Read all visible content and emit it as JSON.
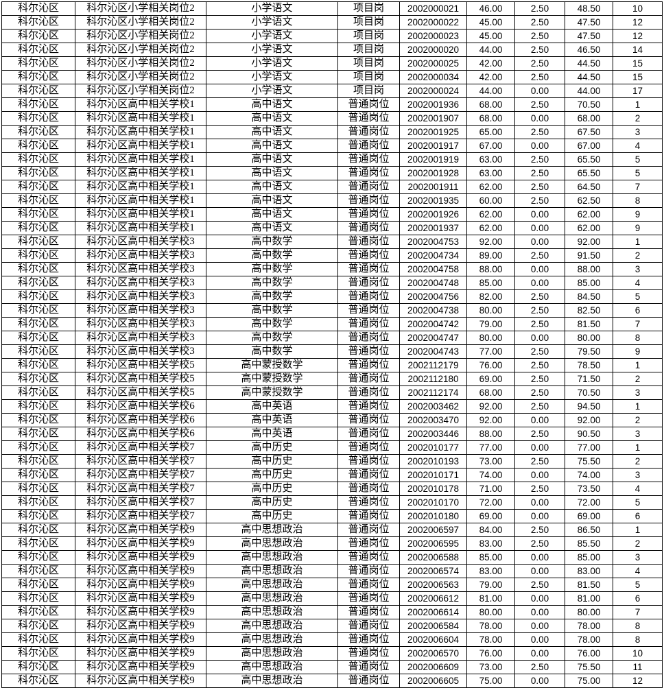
{
  "table": {
    "column_keys": [
      "district",
      "position-group",
      "subject",
      "post-type",
      "exam-id",
      "written-score",
      "extra-points",
      "total-score",
      "rank"
    ],
    "rows": [
      [
        "科尔沁区",
        "科尔沁区小学相关岗位2",
        "小学语文",
        "项目岗",
        "2002000021",
        "46.00",
        "2.50",
        "48.50",
        "10"
      ],
      [
        "科尔沁区",
        "科尔沁区小学相关岗位2",
        "小学语文",
        "项目岗",
        "2002000022",
        "45.00",
        "2.50",
        "47.50",
        "12"
      ],
      [
        "科尔沁区",
        "科尔沁区小学相关岗位2",
        "小学语文",
        "项目岗",
        "2002000023",
        "45.00",
        "2.50",
        "47.50",
        "12"
      ],
      [
        "科尔沁区",
        "科尔沁区小学相关岗位2",
        "小学语文",
        "项目岗",
        "2002000020",
        "44.00",
        "2.50",
        "46.50",
        "14"
      ],
      [
        "科尔沁区",
        "科尔沁区小学相关岗位2",
        "小学语文",
        "项目岗",
        "2002000025",
        "42.00",
        "2.50",
        "44.50",
        "15"
      ],
      [
        "科尔沁区",
        "科尔沁区小学相关岗位2",
        "小学语文",
        "项目岗",
        "2002000034",
        "42.00",
        "2.50",
        "44.50",
        "15"
      ],
      [
        "科尔沁区",
        "科尔沁区小学相关岗位2",
        "小学语文",
        "项目岗",
        "2002000024",
        "44.00",
        "0.00",
        "44.00",
        "17"
      ],
      [
        "科尔沁区",
        "科尔沁区高中相关学校1",
        "高中语文",
        "普通岗位",
        "2002001936",
        "68.00",
        "2.50",
        "70.50",
        "1"
      ],
      [
        "科尔沁区",
        "科尔沁区高中相关学校1",
        "高中语文",
        "普通岗位",
        "2002001907",
        "68.00",
        "0.00",
        "68.00",
        "2"
      ],
      [
        "科尔沁区",
        "科尔沁区高中相关学校1",
        "高中语文",
        "普通岗位",
        "2002001925",
        "65.00",
        "2.50",
        "67.50",
        "3"
      ],
      [
        "科尔沁区",
        "科尔沁区高中相关学校1",
        "高中语文",
        "普通岗位",
        "2002001917",
        "67.00",
        "0.00",
        "67.00",
        "4"
      ],
      [
        "科尔沁区",
        "科尔沁区高中相关学校1",
        "高中语文",
        "普通岗位",
        "2002001919",
        "63.00",
        "2.50",
        "65.50",
        "5"
      ],
      [
        "科尔沁区",
        "科尔沁区高中相关学校1",
        "高中语文",
        "普通岗位",
        "2002001928",
        "63.00",
        "2.50",
        "65.50",
        "5"
      ],
      [
        "科尔沁区",
        "科尔沁区高中相关学校1",
        "高中语文",
        "普通岗位",
        "2002001911",
        "62.00",
        "2.50",
        "64.50",
        "7"
      ],
      [
        "科尔沁区",
        "科尔沁区高中相关学校1",
        "高中语文",
        "普通岗位",
        "2002001935",
        "60.00",
        "2.50",
        "62.50",
        "8"
      ],
      [
        "科尔沁区",
        "科尔沁区高中相关学校1",
        "高中语文",
        "普通岗位",
        "2002001926",
        "62.00",
        "0.00",
        "62.00",
        "9"
      ],
      [
        "科尔沁区",
        "科尔沁区高中相关学校1",
        "高中语文",
        "普通岗位",
        "2002001937",
        "62.00",
        "0.00",
        "62.00",
        "9"
      ],
      [
        "科尔沁区",
        "科尔沁区高中相关学校3",
        "高中数学",
        "普通岗位",
        "2002004753",
        "92.00",
        "0.00",
        "92.00",
        "1"
      ],
      [
        "科尔沁区",
        "科尔沁区高中相关学校3",
        "高中数学",
        "普通岗位",
        "2002004734",
        "89.00",
        "2.50",
        "91.50",
        "2"
      ],
      [
        "科尔沁区",
        "科尔沁区高中相关学校3",
        "高中数学",
        "普通岗位",
        "2002004758",
        "88.00",
        "0.00",
        "88.00",
        "3"
      ],
      [
        "科尔沁区",
        "科尔沁区高中相关学校3",
        "高中数学",
        "普通岗位",
        "2002004748",
        "85.00",
        "0.00",
        "85.00",
        "4"
      ],
      [
        "科尔沁区",
        "科尔沁区高中相关学校3",
        "高中数学",
        "普通岗位",
        "2002004756",
        "82.00",
        "2.50",
        "84.50",
        "5"
      ],
      [
        "科尔沁区",
        "科尔沁区高中相关学校3",
        "高中数学",
        "普通岗位",
        "2002004738",
        "80.00",
        "2.50",
        "82.50",
        "6"
      ],
      [
        "科尔沁区",
        "科尔沁区高中相关学校3",
        "高中数学",
        "普通岗位",
        "2002004742",
        "79.00",
        "2.50",
        "81.50",
        "7"
      ],
      [
        "科尔沁区",
        "科尔沁区高中相关学校3",
        "高中数学",
        "普通岗位",
        "2002004747",
        "80.00",
        "0.00",
        "80.00",
        "8"
      ],
      [
        "科尔沁区",
        "科尔沁区高中相关学校3",
        "高中数学",
        "普通岗位",
        "2002004743",
        "77.00",
        "2.50",
        "79.50",
        "9"
      ],
      [
        "科尔沁区",
        "科尔沁区高中相关学校5",
        "高中蒙授数学",
        "普通岗位",
        "2002112179",
        "76.00",
        "2.50",
        "78.50",
        "1"
      ],
      [
        "科尔沁区",
        "科尔沁区高中相关学校5",
        "高中蒙授数学",
        "普通岗位",
        "2002112180",
        "69.00",
        "2.50",
        "71.50",
        "2"
      ],
      [
        "科尔沁区",
        "科尔沁区高中相关学校5",
        "高中蒙授数学",
        "普通岗位",
        "2002112174",
        "68.00",
        "2.50",
        "70.50",
        "3"
      ],
      [
        "科尔沁区",
        "科尔沁区高中相关学校6",
        "高中英语",
        "普通岗位",
        "2002003462",
        "92.00",
        "2.50",
        "94.50",
        "1"
      ],
      [
        "科尔沁区",
        "科尔沁区高中相关学校6",
        "高中英语",
        "普通岗位",
        "2002003470",
        "92.00",
        "0.00",
        "92.00",
        "2"
      ],
      [
        "科尔沁区",
        "科尔沁区高中相关学校6",
        "高中英语",
        "普通岗位",
        "2002003446",
        "88.00",
        "2.50",
        "90.50",
        "3"
      ],
      [
        "科尔沁区",
        "科尔沁区高中相关学校7",
        "高中历史",
        "普通岗位",
        "2002010177",
        "77.00",
        "0.00",
        "77.00",
        "1"
      ],
      [
        "科尔沁区",
        "科尔沁区高中相关学校7",
        "高中历史",
        "普通岗位",
        "2002010193",
        "73.00",
        "2.50",
        "75.50",
        "2"
      ],
      [
        "科尔沁区",
        "科尔沁区高中相关学校7",
        "高中历史",
        "普通岗位",
        "2002010171",
        "74.00",
        "0.00",
        "74.00",
        "3"
      ],
      [
        "科尔沁区",
        "科尔沁区高中相关学校7",
        "高中历史",
        "普通岗位",
        "2002010178",
        "71.00",
        "2.50",
        "73.50",
        "4"
      ],
      [
        "科尔沁区",
        "科尔沁区高中相关学校7",
        "高中历史",
        "普通岗位",
        "2002010170",
        "72.00",
        "0.00",
        "72.00",
        "5"
      ],
      [
        "科尔沁区",
        "科尔沁区高中相关学校7",
        "高中历史",
        "普通岗位",
        "2002010180",
        "69.00",
        "0.00",
        "69.00",
        "6"
      ],
      [
        "科尔沁区",
        "科尔沁区高中相关学校9",
        "高中思想政治",
        "普通岗位",
        "2002006597",
        "84.00",
        "2.50",
        "86.50",
        "1"
      ],
      [
        "科尔沁区",
        "科尔沁区高中相关学校9",
        "高中思想政治",
        "普通岗位",
        "2002006595",
        "83.00",
        "2.50",
        "85.50",
        "2"
      ],
      [
        "科尔沁区",
        "科尔沁区高中相关学校9",
        "高中思想政治",
        "普通岗位",
        "2002006588",
        "85.00",
        "0.00",
        "85.00",
        "3"
      ],
      [
        "科尔沁区",
        "科尔沁区高中相关学校9",
        "高中思想政治",
        "普通岗位",
        "2002006574",
        "83.00",
        "0.00",
        "83.00",
        "4"
      ],
      [
        "科尔沁区",
        "科尔沁区高中相关学校9",
        "高中思想政治",
        "普通岗位",
        "2002006563",
        "79.00",
        "2.50",
        "81.50",
        "5"
      ],
      [
        "科尔沁区",
        "科尔沁区高中相关学校9",
        "高中思想政治",
        "普通岗位",
        "2002006612",
        "81.00",
        "0.00",
        "81.00",
        "6"
      ],
      [
        "科尔沁区",
        "科尔沁区高中相关学校9",
        "高中思想政治",
        "普通岗位",
        "2002006614",
        "80.00",
        "0.00",
        "80.00",
        "7"
      ],
      [
        "科尔沁区",
        "科尔沁区高中相关学校9",
        "高中思想政治",
        "普通岗位",
        "2002006584",
        "78.00",
        "0.00",
        "78.00",
        "8"
      ],
      [
        "科尔沁区",
        "科尔沁区高中相关学校9",
        "高中思想政治",
        "普通岗位",
        "2002006604",
        "78.00",
        "0.00",
        "78.00",
        "8"
      ],
      [
        "科尔沁区",
        "科尔沁区高中相关学校9",
        "高中思想政治",
        "普通岗位",
        "2002006570",
        "76.00",
        "0.00",
        "76.00",
        "10"
      ],
      [
        "科尔沁区",
        "科尔沁区高中相关学校9",
        "高中思想政治",
        "普通岗位",
        "2002006609",
        "73.00",
        "2.50",
        "75.50",
        "11"
      ],
      [
        "科尔沁区",
        "科尔沁区高中相关学校9",
        "高中思想政治",
        "普通岗位",
        "2002006605",
        "75.00",
        "0.00",
        "75.00",
        "12"
      ]
    ]
  },
  "colors": {
    "border": "#000000",
    "text": "#000000",
    "background": "#ffffff"
  }
}
